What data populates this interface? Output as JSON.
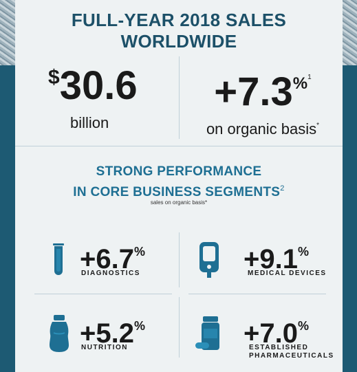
{
  "title": "FULL-YEAR 2018 SALES WORLDWIDE",
  "sales": {
    "dollar_sign": "$",
    "value": "30.6",
    "unit": "billion"
  },
  "growth": {
    "value": "+7.3",
    "percent_sign": "%",
    "footnote": "1",
    "basis": "on organic basis",
    "star": "*"
  },
  "strong": {
    "line1": "STRONG PERFORMANCE",
    "line2": "IN CORE BUSINESS SEGMENTS",
    "footnote": "2"
  },
  "sales_note": "sales on organic basis*",
  "segments": [
    {
      "value": "+6.7",
      "percent_sign": "%",
      "label": "DIAGNOSTICS",
      "icon": "test-tube-icon"
    },
    {
      "value": "+9.1",
      "percent_sign": "%",
      "label": "MEDICAL DEVICES",
      "icon": "glucose-meter-icon"
    },
    {
      "value": "+5.2",
      "percent_sign": "%",
      "label": "NUTRITION",
      "icon": "nutrition-bottle-icon"
    },
    {
      "value": "+7.0",
      "percent_sign": "%",
      "label_line1": "ESTABLISHED",
      "label_line2": "PHARMACEUTICALS",
      "icon": "pill-bottle-icon"
    }
  ],
  "colors": {
    "accent": "#1e6f93",
    "navy": "#1c5068",
    "card": "#eef2f3",
    "frame": "#1e5a74"
  }
}
